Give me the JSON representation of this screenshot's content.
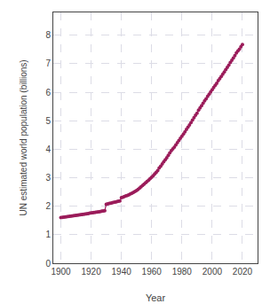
{
  "chart_data": {
    "type": "line",
    "xlabel": "Year",
    "ylabel": "UN estimated world population (billions)",
    "color": "#9b1c5a",
    "marker": "circle",
    "line_style": "solid",
    "grid": true,
    "xlim": [
      1895,
      2030
    ],
    "ylim": [
      0,
      8.8
    ],
    "xticks": [
      1900,
      1920,
      1940,
      1960,
      1980,
      2000,
      2020
    ],
    "yticks": [
      0,
      1,
      2,
      3,
      4,
      5,
      6,
      7,
      8
    ],
    "x": [
      1900,
      1901,
      1902,
      1903,
      1904,
      1905,
      1906,
      1907,
      1908,
      1909,
      1910,
      1911,
      1912,
      1913,
      1914,
      1915,
      1916,
      1917,
      1918,
      1919,
      1920,
      1921,
      1922,
      1923,
      1924,
      1925,
      1926,
      1927,
      1928,
      1929,
      1930,
      1931,
      1932,
      1933,
      1934,
      1935,
      1936,
      1937,
      1938,
      1939,
      1940,
      1941,
      1942,
      1943,
      1944,
      1945,
      1946,
      1947,
      1948,
      1949,
      1950,
      1951,
      1952,
      1953,
      1954,
      1955,
      1956,
      1957,
      1958,
      1959,
      1960,
      1961,
      1962,
      1963,
      1964,
      1965,
      1966,
      1967,
      1968,
      1969,
      1970,
      1971,
      1972,
      1973,
      1974,
      1975,
      1976,
      1977,
      1978,
      1979,
      1980,
      1981,
      1982,
      1983,
      1984,
      1985,
      1986,
      1987,
      1988,
      1989,
      1990,
      1991,
      1992,
      1993,
      1994,
      1995,
      1996,
      1997,
      1998,
      1999,
      2000,
      2001,
      2002,
      2003,
      2004,
      2005,
      2006,
      2007,
      2008,
      2009,
      2010,
      2011,
      2012,
      2013,
      2014,
      2015,
      2016,
      2017,
      2018,
      2019,
      2020
    ],
    "values": [
      1.6,
      1.608,
      1.616,
      1.624,
      1.632,
      1.64,
      1.648,
      1.656,
      1.664,
      1.672,
      1.68,
      1.688,
      1.696,
      1.705,
      1.713,
      1.721,
      1.729,
      1.737,
      1.745,
      1.754,
      1.762,
      1.771,
      1.779,
      1.788,
      1.797,
      1.806,
      1.814,
      1.823,
      1.832,
      1.841,
      2.07,
      2.083,
      2.096,
      2.109,
      2.122,
      2.136,
      2.149,
      2.162,
      2.175,
      2.188,
      2.3,
      2.32,
      2.34,
      2.36,
      2.38,
      2.4,
      2.43,
      2.46,
      2.49,
      2.52,
      2.55,
      2.592,
      2.636,
      2.681,
      2.727,
      2.773,
      2.82,
      2.867,
      2.916,
      2.966,
      3.018,
      3.074,
      3.132,
      3.19,
      3.252,
      3.34,
      3.406,
      3.484,
      3.562,
      3.632,
      3.7,
      3.784,
      3.868,
      3.952,
      4.012,
      4.072,
      4.152,
      4.232,
      4.306,
      4.382,
      4.454,
      4.532,
      4.612,
      4.692,
      4.772,
      4.854,
      4.94,
      5.023,
      5.108,
      5.193,
      5.263,
      5.369,
      5.45,
      5.531,
      5.613,
      5.695,
      5.772,
      5.851,
      5.93,
      6.008,
      6.085,
      6.162,
      6.24,
      6.314,
      6.403,
      6.472,
      6.552,
      6.632,
      6.711,
      6.791,
      6.872,
      6.953,
      7.04,
      7.12,
      7.2,
      7.284,
      7.374,
      7.444,
      7.511,
      7.594,
      7.673
    ]
  }
}
